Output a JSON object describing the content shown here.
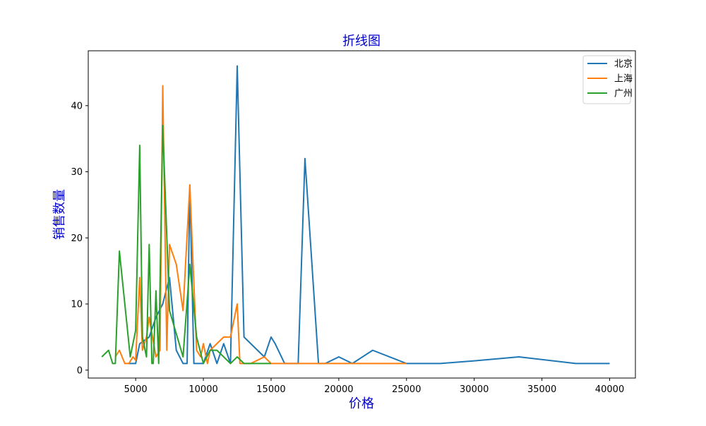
{
  "chart_data": {
    "type": "line",
    "title": "折线图",
    "xlabel": "价格",
    "ylabel": "销售数量",
    "xlim": [
      1500,
      41900
    ],
    "ylim": [
      -1.2,
      48.3
    ],
    "xticks": [
      {
        "value": 5000,
        "label": "5000"
      },
      {
        "value": 10000,
        "label": "10000"
      },
      {
        "value": 15000,
        "label": "15000"
      },
      {
        "value": 20000,
        "label": "20000"
      },
      {
        "value": 25000,
        "label": "25000"
      },
      {
        "value": 30000,
        "label": "30000"
      },
      {
        "value": 35000,
        "label": "35000"
      },
      {
        "value": 40000,
        "label": "40000"
      }
    ],
    "yticks": [
      {
        "value": 0,
        "label": "0"
      },
      {
        "value": 10,
        "label": "10"
      },
      {
        "value": 20,
        "label": "20"
      },
      {
        "value": 30,
        "label": "30"
      },
      {
        "value": 40,
        "label": "40"
      }
    ],
    "grid": false,
    "legend": {
      "position": "top-right"
    },
    "series": [
      {
        "name": "北京",
        "color": "#1f77b4",
        "points": [
          [
            4500,
            1
          ],
          [
            5000,
            1
          ],
          [
            5300,
            4
          ],
          [
            6000,
            5
          ],
          [
            6500,
            8
          ],
          [
            7000,
            10
          ],
          [
            7500,
            14
          ],
          [
            8000,
            3
          ],
          [
            8500,
            1
          ],
          [
            8800,
            1
          ],
          [
            9000,
            28
          ],
          [
            9300,
            1
          ],
          [
            10000,
            1
          ],
          [
            10500,
            4
          ],
          [
            11000,
            1
          ],
          [
            11500,
            4
          ],
          [
            12000,
            1
          ],
          [
            12500,
            46
          ],
          [
            13000,
            5
          ],
          [
            14000,
            3
          ],
          [
            14500,
            2
          ],
          [
            15000,
            5
          ],
          [
            15300,
            4
          ],
          [
            16000,
            1
          ],
          [
            17000,
            1
          ],
          [
            17500,
            32
          ],
          [
            18500,
            1
          ],
          [
            19000,
            1
          ],
          [
            20000,
            2
          ],
          [
            21000,
            1
          ],
          [
            22500,
            3
          ],
          [
            25000,
            1
          ],
          [
            27500,
            1
          ],
          [
            30000,
            1.4
          ],
          [
            33300,
            2
          ],
          [
            37500,
            1
          ],
          [
            40000,
            1
          ]
        ]
      },
      {
        "name": "上海",
        "color": "#ff7f0e",
        "points": [
          [
            3500,
            2
          ],
          [
            3800,
            3
          ],
          [
            4200,
            1
          ],
          [
            4500,
            1
          ],
          [
            4800,
            2
          ],
          [
            5000,
            1.5
          ],
          [
            5300,
            14
          ],
          [
            5500,
            3
          ],
          [
            5800,
            5
          ],
          [
            6000,
            8
          ],
          [
            6500,
            2
          ],
          [
            6800,
            3
          ],
          [
            7000,
            43
          ],
          [
            7300,
            3
          ],
          [
            7500,
            19
          ],
          [
            8000,
            16
          ],
          [
            8500,
            9
          ],
          [
            9000,
            28
          ],
          [
            9500,
            3
          ],
          [
            9800,
            2
          ],
          [
            10000,
            4
          ],
          [
            10300,
            1
          ],
          [
            10500,
            3
          ],
          [
            11000,
            4
          ],
          [
            11500,
            5
          ],
          [
            12000,
            5
          ],
          [
            12500,
            10
          ],
          [
            12700,
            1
          ],
          [
            13500,
            1
          ],
          [
            14500,
            2
          ],
          [
            15000,
            1
          ],
          [
            16000,
            1
          ],
          [
            18000,
            1
          ],
          [
            20000,
            1
          ],
          [
            22500,
            1
          ],
          [
            25000,
            1
          ]
        ]
      },
      {
        "name": "广州",
        "color": "#2ca02c",
        "points": [
          [
            2500,
            2
          ],
          [
            3000,
            3
          ],
          [
            3300,
            1
          ],
          [
            3500,
            1
          ],
          [
            3800,
            18
          ],
          [
            4200,
            10
          ],
          [
            4600,
            2
          ],
          [
            5000,
            6
          ],
          [
            5300,
            34
          ],
          [
            5500,
            5
          ],
          [
            5800,
            2
          ],
          [
            6000,
            19
          ],
          [
            6200,
            1
          ],
          [
            6300,
            1
          ],
          [
            6500,
            12
          ],
          [
            6700,
            1
          ],
          [
            7000,
            37
          ],
          [
            7500,
            9
          ],
          [
            8500,
            2
          ],
          [
            9000,
            16
          ],
          [
            9500,
            5
          ],
          [
            10000,
            1
          ],
          [
            10500,
            3
          ],
          [
            11000,
            3
          ],
          [
            12000,
            1
          ],
          [
            12500,
            2
          ],
          [
            13000,
            1
          ],
          [
            15000,
            1
          ]
        ]
      }
    ]
  }
}
